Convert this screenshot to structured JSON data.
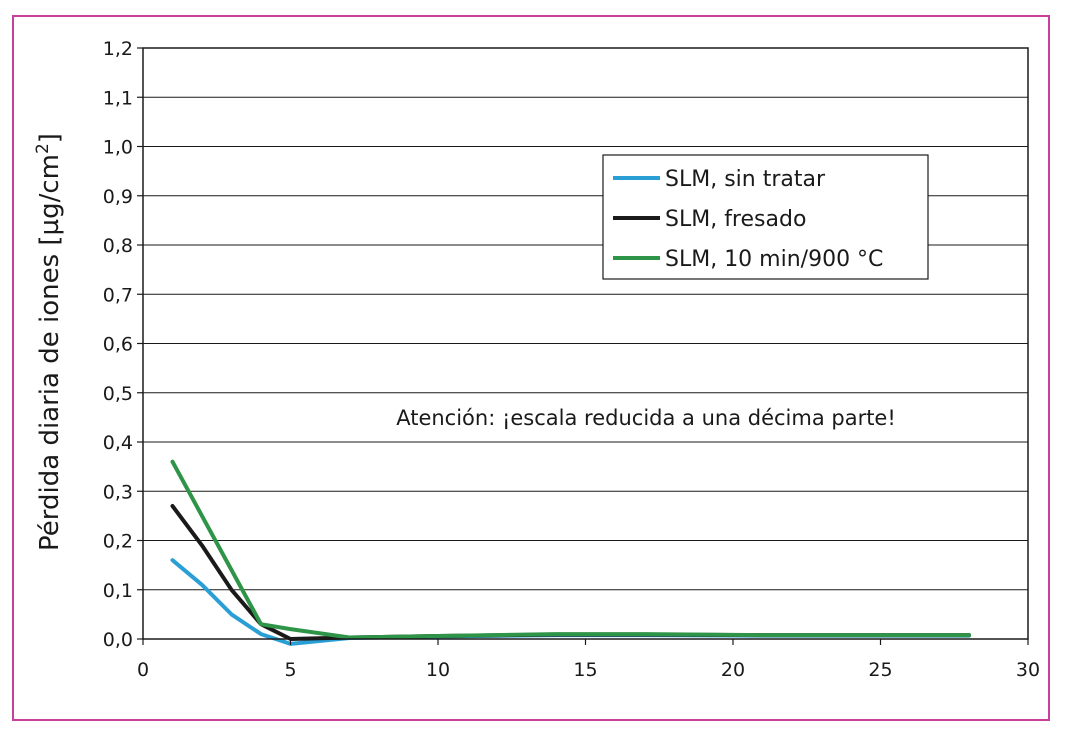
{
  "chart_data": {
    "type": "line",
    "title": "",
    "xlabel": "",
    "ylabel": "Pérdida diaria de iones [µg/cm",
    "ylabel_superscript": "2",
    "ylabel_close": "]",
    "xlim": [
      0,
      30
    ],
    "ylim": [
      0,
      1.2
    ],
    "x_ticks": [
      0,
      5,
      10,
      15,
      20,
      25,
      30
    ],
    "x_tick_labels": [
      "0",
      "5",
      "10",
      "15",
      "20",
      "25",
      "30"
    ],
    "y_ticks": [
      0,
      0.1,
      0.2,
      0.3,
      0.4,
      0.5,
      0.6,
      0.7,
      0.8,
      0.9,
      1.0,
      1.1,
      1.2
    ],
    "y_tick_labels": [
      "0,0",
      "0,1",
      "0,2",
      "0,3",
      "0,4",
      "0,5",
      "0,6",
      "0,7",
      "0,8",
      "0,9",
      "1,0",
      "1,1",
      "1,2"
    ],
    "grid": "horizontal",
    "legend_position": "top-right",
    "annotation": "Atención: ¡escala reducida a una décima parte!",
    "series": [
      {
        "name": "SLM, sin tratar",
        "color": "#2a9fd6",
        "x": [
          1,
          2,
          3,
          4,
          5,
          7,
          10,
          14,
          17,
          21,
          28
        ],
        "y": [
          0.16,
          0.11,
          0.05,
          0.01,
          -0.01,
          0.002,
          0.005,
          0.008,
          0.008,
          0.007,
          0.007
        ]
      },
      {
        "name": "SLM, fresado",
        "color": "#1a1a1a",
        "x": [
          1,
          2,
          3,
          4,
          5,
          7,
          10,
          14,
          17,
          21,
          28
        ],
        "y": [
          0.27,
          0.19,
          0.1,
          0.03,
          0.0,
          0.003,
          0.006,
          0.009,
          0.009,
          0.008,
          0.008
        ]
      },
      {
        "name": "SLM, 10 min/900 °C",
        "color": "#2e9447",
        "x": [
          1,
          2,
          3,
          4,
          5,
          7,
          10,
          14,
          17,
          21,
          28
        ],
        "y": [
          0.36,
          0.25,
          0.14,
          0.03,
          0.02,
          0.003,
          0.006,
          0.01,
          0.01,
          0.008,
          0.008
        ]
      }
    ]
  }
}
